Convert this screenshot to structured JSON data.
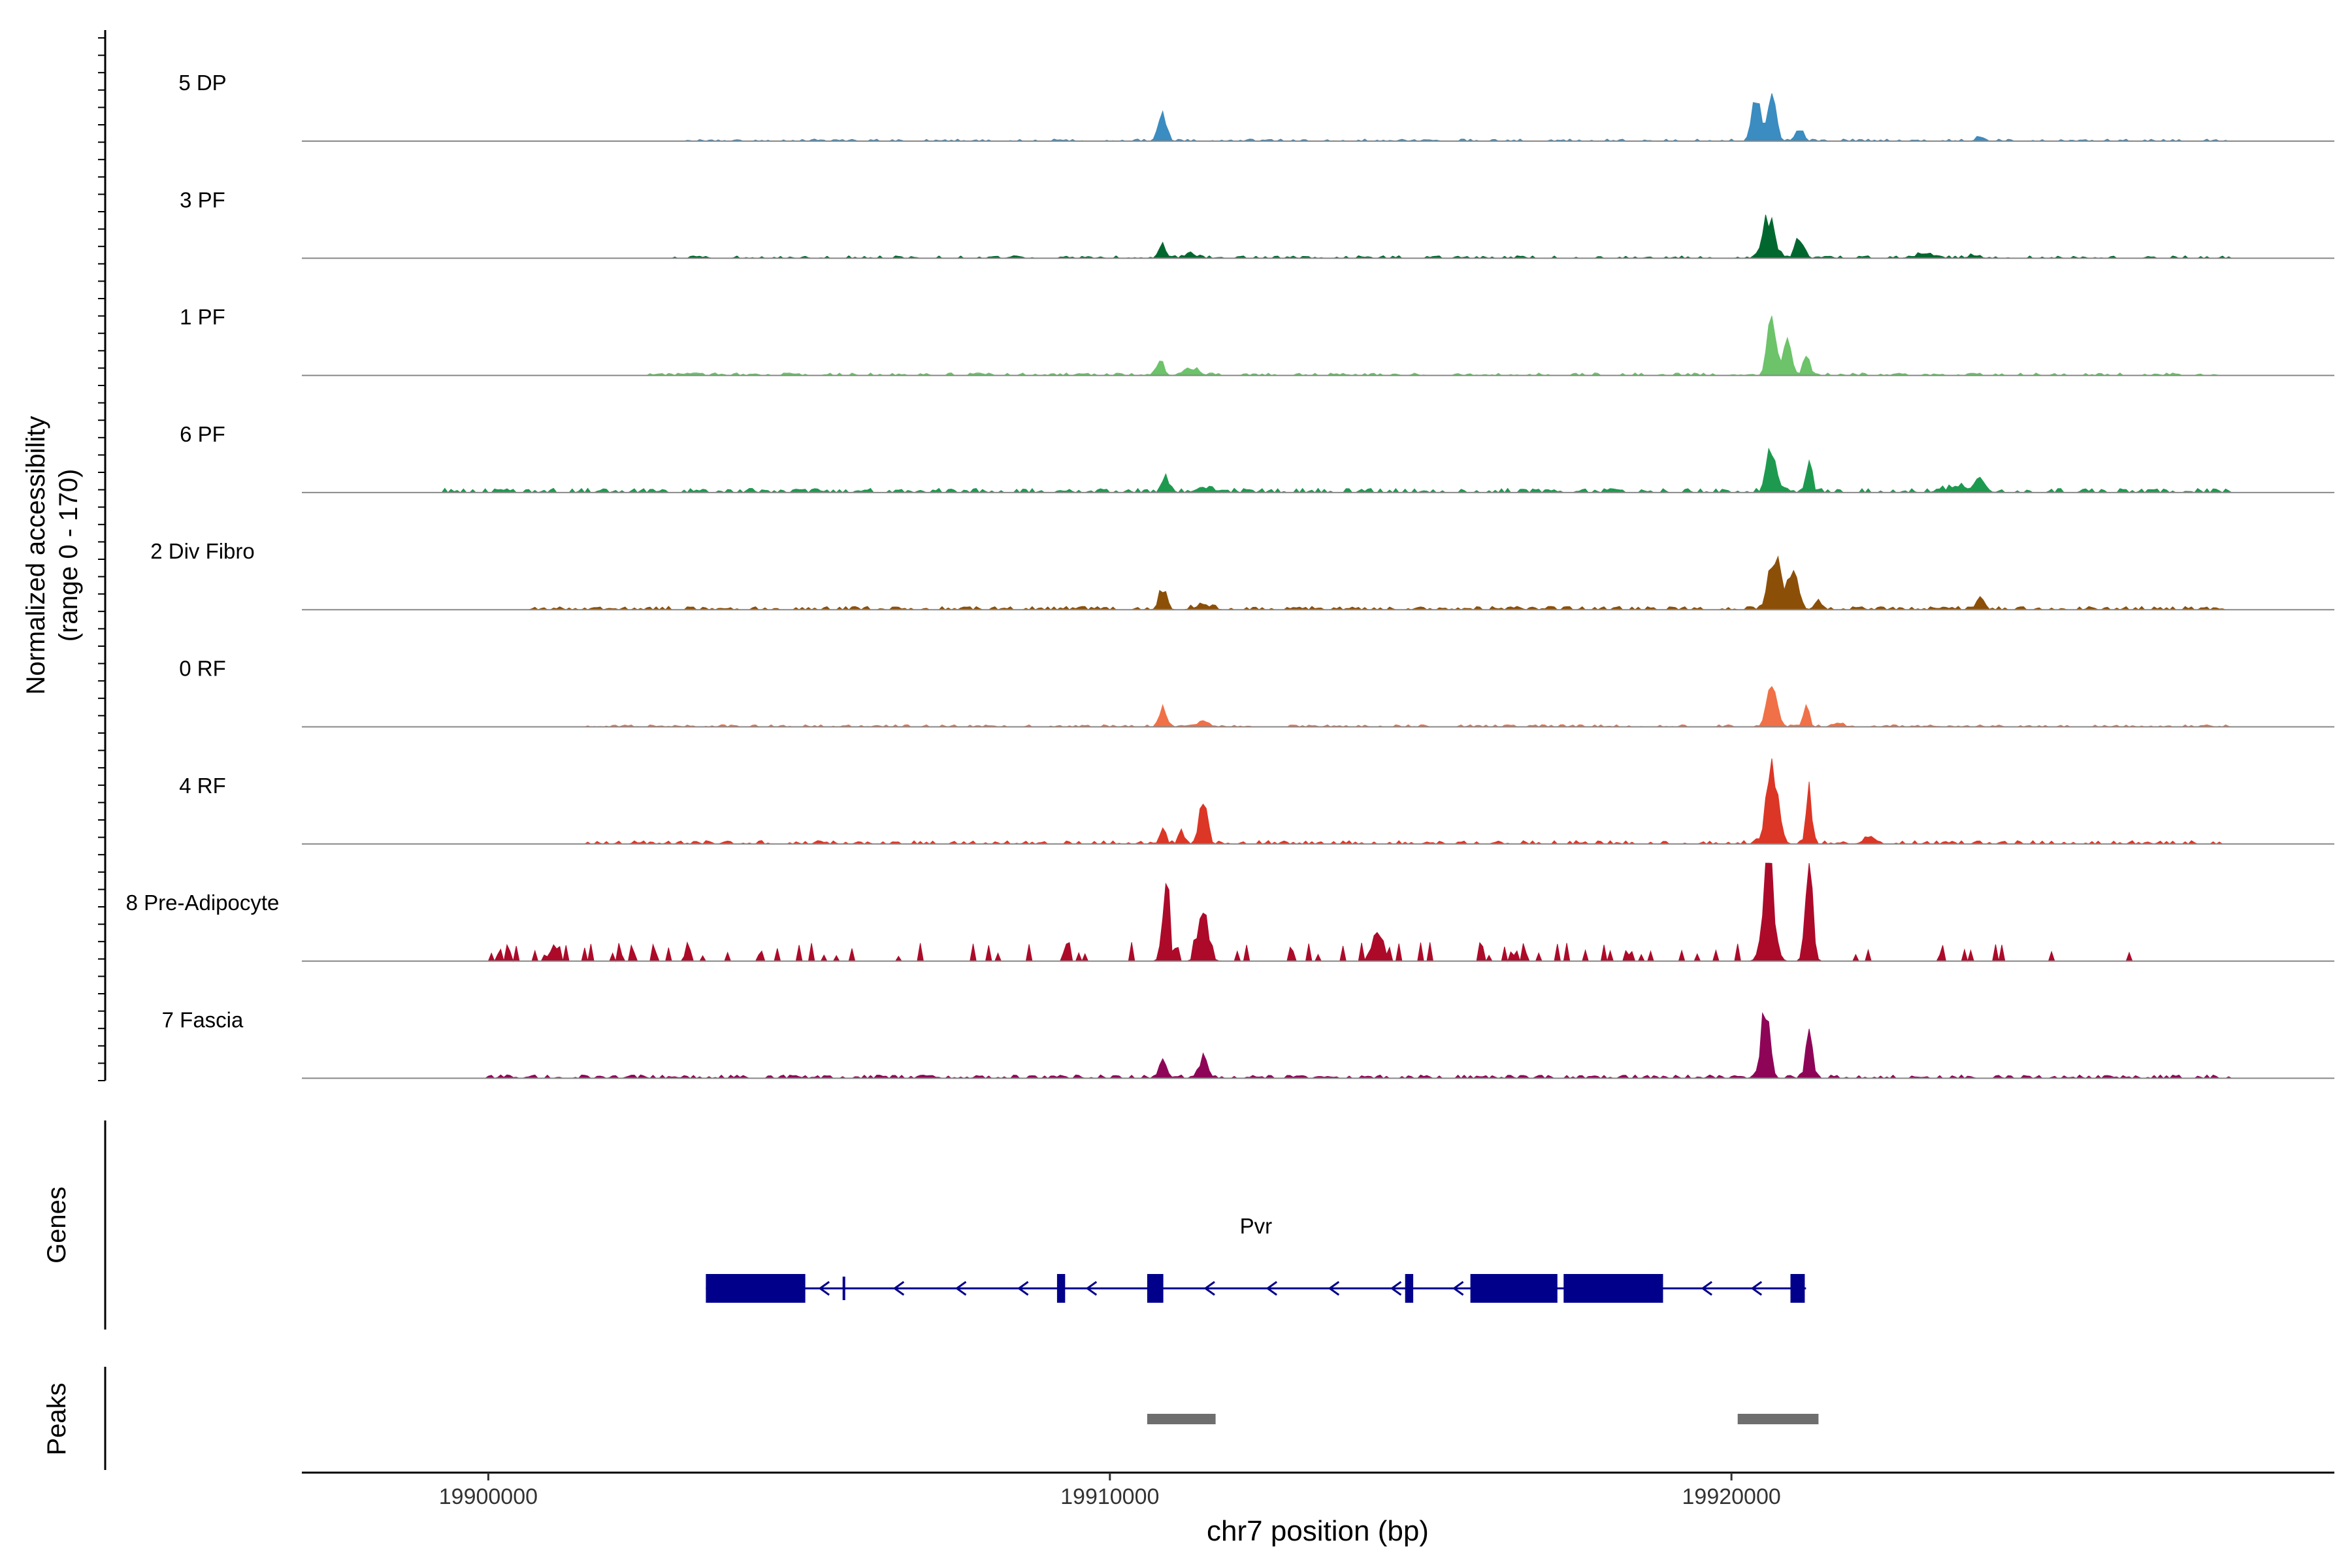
{
  "chart_data": {
    "type": "area",
    "title": "",
    "xlabel": "chr7 position (bp)",
    "ylabel": "Normalized accessibility",
    "ylabel_sub": "(range 0 - 170)",
    "xlim": [
      19897000,
      19929700
    ],
    "ylim": [
      0,
      170
    ],
    "x_ticks": [
      19900000,
      19910000,
      19920000
    ],
    "x_tick_labels": [
      "19900000",
      "19910000",
      "19920000"
    ],
    "tracks": [
      {
        "name": "5 DP",
        "color": "#3A8CC1",
        "peaks": [
          [
            19910850,
            60,
            90
          ],
          [
            19920400,
            62,
            150
          ],
          [
            19920650,
            70,
            120
          ],
          [
            19921100,
            55,
            40
          ],
          [
            19924000,
            60,
            12
          ]
        ],
        "noise": 5,
        "noise_prob": 0.45,
        "noise_range": [
          19903200,
          19928000
        ],
        "seed": 11
      },
      {
        "name": "3 PF",
        "color": "#00682F",
        "peaks": [
          [
            19910850,
            55,
            45
          ],
          [
            19911300,
            90,
            12
          ],
          [
            19920600,
            95,
            120
          ],
          [
            19921100,
            65,
            70
          ],
          [
            19923100,
            150,
            12
          ],
          [
            19923900,
            80,
            10
          ]
        ],
        "noise": 6,
        "noise_prob": 0.4,
        "noise_range": [
          19903000,
          19928000
        ],
        "seed": 23
      },
      {
        "name": "1 PF",
        "color": "#6CC36A",
        "peaks": [
          [
            19910800,
            60,
            45
          ],
          [
            19911300,
            110,
            22
          ],
          [
            19920650,
            65,
            180
          ],
          [
            19920900,
            60,
            120
          ],
          [
            19921200,
            50,
            60
          ]
        ],
        "noise": 6,
        "noise_prob": 0.45,
        "noise_range": [
          19902600,
          19928000
        ],
        "seed": 37
      },
      {
        "name": "6 PF",
        "color": "#1D9A4F",
        "peaks": [
          [
            19910900,
            55,
            45
          ],
          [
            19911500,
            110,
            15
          ],
          [
            19920650,
            75,
            140
          ],
          [
            19921250,
            45,
            110
          ],
          [
            19923700,
            250,
            15
          ],
          [
            19924000,
            60,
            32
          ]
        ],
        "noise": 10,
        "noise_prob": 0.55,
        "noise_range": [
          19899300,
          19928000
        ],
        "seed": 41
      },
      {
        "name": "2 Div Fibro",
        "color": "#8C4F08",
        "peaks": [
          [
            19910850,
            60,
            60
          ],
          [
            19911500,
            120,
            15
          ],
          [
            19920700,
            100,
            150
          ],
          [
            19921000,
            80,
            110
          ],
          [
            19921400,
            60,
            30
          ],
          [
            19924000,
            60,
            38
          ]
        ],
        "noise": 8,
        "noise_prob": 0.5,
        "noise_range": [
          19900700,
          19928000
        ],
        "seed": 53
      },
      {
        "name": "0 RF",
        "color": "#F07047",
        "peaks": [
          [
            19910850,
            55,
            55
          ],
          [
            19911500,
            90,
            14
          ],
          [
            19920650,
            75,
            145
          ],
          [
            19921200,
            45,
            70
          ],
          [
            19921700,
            80,
            10
          ]
        ],
        "noise": 5,
        "noise_prob": 0.45,
        "noise_range": [
          19901600,
          19928000
        ],
        "seed": 67
      },
      {
        "name": "4 RF",
        "color": "#DC3626",
        "peaks": [
          [
            19910850,
            45,
            45
          ],
          [
            19911150,
            40,
            45
          ],
          [
            19911500,
            60,
            150
          ],
          [
            19920650,
            90,
            240
          ],
          [
            19921250,
            45,
            150
          ],
          [
            19922200,
            80,
            22
          ]
        ],
        "noise": 8,
        "noise_prob": 0.45,
        "noise_range": [
          19901600,
          19928000
        ],
        "seed": 79
      },
      {
        "name": "8 Pre-Adipocyte",
        "color": "#AD0A2A",
        "peaks": [
          [
            19910900,
            55,
            200
          ],
          [
            19911500,
            80,
            140
          ],
          [
            19914300,
            80,
            110
          ],
          [
            19920600,
            85,
            300
          ],
          [
            19921250,
            55,
            300
          ]
        ],
        "noise": 45,
        "noise_prob": 0.2,
        "noise_range": [
          19900000,
          19926600
        ],
        "seed": 97
      },
      {
        "name": "7 Fascia",
        "color": "#8E0558",
        "peaks": [
          [
            19910850,
            55,
            55
          ],
          [
            19911500,
            75,
            55
          ],
          [
            19920550,
            65,
            220
          ],
          [
            19921250,
            55,
            120
          ]
        ],
        "noise": 8,
        "noise_prob": 0.55,
        "noise_range": [
          19900000,
          19928000
        ],
        "seed": 113
      }
    ],
    "genes_label": "Genes",
    "peaks_label": "Peaks",
    "gene": {
      "name": "Pvr",
      "strand": "-",
      "start": 19903500,
      "end": 19921200,
      "exons": [
        [
          19903500,
          19905100
        ],
        [
          19905700,
          19905730
        ],
        [
          19909150,
          19909280
        ],
        [
          19910600,
          19910860
        ],
        [
          19914750,
          19914880
        ],
        [
          19915800,
          19917200
        ],
        [
          19917300,
          19918900
        ],
        [
          19920950,
          19921180
        ]
      ],
      "arrows": [
        19905400,
        19906600,
        19907600,
        19908600,
        19909700,
        19911600,
        19912600,
        19913600,
        19914600,
        19915600,
        19919600,
        19920400
      ]
    },
    "peak_regions": [
      [
        19910600,
        19911700
      ],
      [
        19920100,
        19921400
      ]
    ]
  }
}
